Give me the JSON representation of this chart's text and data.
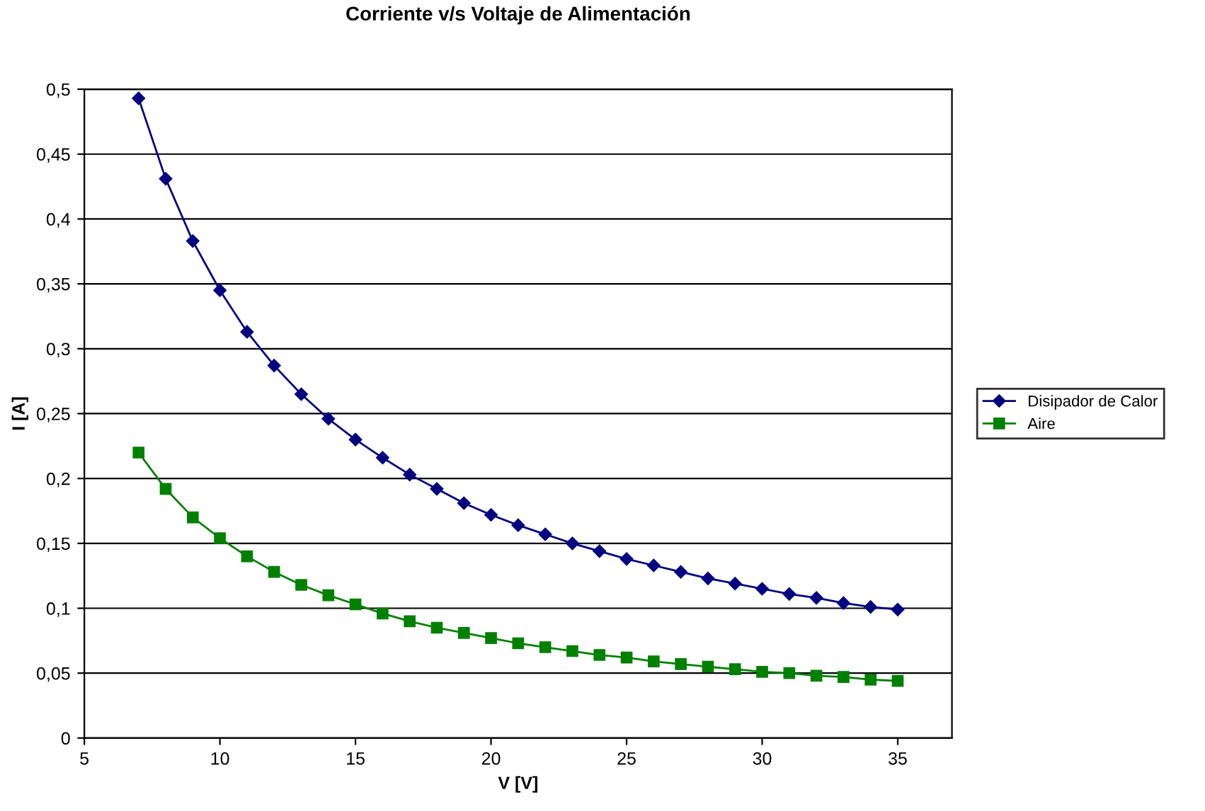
{
  "chart_data": {
    "type": "line",
    "title": "Corriente v/s Voltaje de Alimentación",
    "xlabel": "V [V]",
    "ylabel": "I [A]",
    "x": [
      7,
      8,
      9,
      10,
      11,
      12,
      13,
      14,
      15,
      16,
      17,
      18,
      19,
      20,
      21,
      22,
      23,
      24,
      25,
      26,
      27,
      28,
      29,
      30,
      31,
      32,
      33,
      34,
      35
    ],
    "series": [
      {
        "name": "Disipador de Calor",
        "color": "#000080",
        "marker": "diamond",
        "values": [
          0.493,
          0.431,
          0.383,
          0.345,
          0.313,
          0.287,
          0.265,
          0.246,
          0.23,
          0.216,
          0.203,
          0.192,
          0.181,
          0.172,
          0.164,
          0.157,
          0.15,
          0.144,
          0.138,
          0.133,
          0.128,
          0.123,
          0.119,
          0.115,
          0.111,
          0.108,
          0.104,
          0.101,
          0.099
        ]
      },
      {
        "name": "Aire",
        "color": "#008000",
        "marker": "square",
        "values": [
          0.22,
          0.192,
          0.17,
          0.154,
          0.14,
          0.128,
          0.118,
          0.11,
          0.103,
          0.096,
          0.09,
          0.085,
          0.081,
          0.077,
          0.073,
          0.07,
          0.067,
          0.064,
          0.062,
          0.059,
          0.057,
          0.055,
          0.053,
          0.051,
          0.05,
          0.048,
          0.047,
          0.045,
          0.044
        ]
      }
    ],
    "xlim": [
      5,
      37
    ],
    "xticks": [
      5,
      10,
      15,
      20,
      25,
      30,
      35
    ],
    "ylim": [
      0,
      0.5
    ],
    "yticks": [
      0,
      {
        "value": 0.05,
        "label": "0,05"
      },
      {
        "value": 0.1,
        "label": "0,1"
      },
      {
        "value": 0.15,
        "label": "0,15"
      },
      {
        "value": 0.2,
        "label": "0,2"
      },
      {
        "value": 0.25,
        "label": "0,25"
      },
      {
        "value": 0.3,
        "label": "0,3"
      },
      {
        "value": 0.35,
        "label": "0,35"
      },
      {
        "value": 0.4,
        "label": "0,4"
      },
      {
        "value": 0.45,
        "label": "0,45"
      },
      {
        "value": 0.5,
        "label": "0,5"
      }
    ],
    "grid": "y",
    "legend": "right",
    "line_style": "solid"
  }
}
